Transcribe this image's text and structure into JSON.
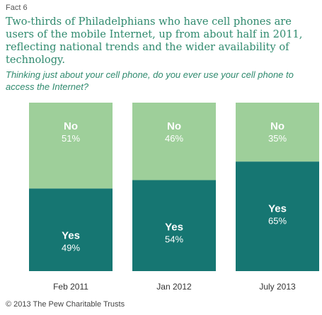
{
  "fact_label": "Fact 6",
  "headline": "Two-thirds of Philadelphians who have cell phones are users of the mobile Internet, up from about half in 2011, reflecting national trends and the wider availability of technology.",
  "question": "Thinking just about your cell phone, do you ever use your cell phone to access the Internet?",
  "copyright": "© 2013 The Pew Charitable Trusts",
  "colors": {
    "yes": "#167672",
    "no": "#9ecf9a",
    "text_white": "#ffffff",
    "headline": "#2f8a6e"
  },
  "chart_data": {
    "type": "bar",
    "stacked": true,
    "categories": [
      "Feb 2011",
      "Jan 2012",
      "July 2013"
    ],
    "series": [
      {
        "name": "Yes",
        "values": [
          49,
          54,
          65
        ],
        "labels": [
          "49%",
          "54%",
          "65%"
        ]
      },
      {
        "name": "No",
        "values": [
          51,
          46,
          35
        ],
        "labels": [
          "51%",
          "46%",
          "35%"
        ]
      }
    ],
    "ylim": [
      0,
      100
    ]
  }
}
